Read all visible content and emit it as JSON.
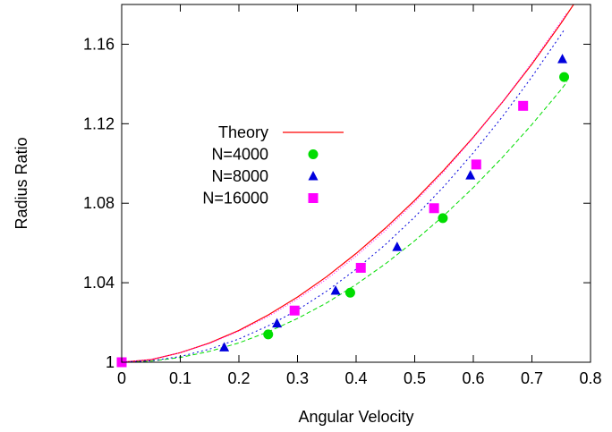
{
  "chart_data": {
    "type": "scatter",
    "title": "",
    "xlabel": "Angular Velocity",
    "ylabel": "Radius Ratio",
    "xlim": [
      0,
      0.8
    ],
    "ylim": [
      1,
      1.18
    ],
    "x_ticks": [
      "0",
      "0.1",
      "0.2",
      "0.3",
      "0.4",
      "0.5",
      "0.6",
      "0.7",
      "0.8"
    ],
    "y_ticks": [
      "1",
      "1.04",
      "1.08",
      "1.12",
      "1.16"
    ],
    "grid": false,
    "legend_position": "upper-left inside plot",
    "theory": {
      "name": "Theory",
      "color": "#ff0000",
      "style": "solid",
      "x": [
        0,
        0.05,
        0.1,
        0.15,
        0.2,
        0.25,
        0.3,
        0.35,
        0.4,
        0.45,
        0.5,
        0.55,
        0.6,
        0.65,
        0.7,
        0.75,
        0.8
      ],
      "y": [
        1.0,
        1.0013,
        1.0048,
        1.0097,
        1.016,
        1.0238,
        1.0328,
        1.0431,
        1.0547,
        1.0675,
        1.0815,
        1.0968,
        1.1132,
        1.131,
        1.15,
        1.1707,
        1.1928
      ]
    },
    "series": [
      {
        "name": "N=4000",
        "color": "#00dd00",
        "marker": "circle",
        "x": [
          0,
          0.25,
          0.39,
          0.548,
          0.755
        ],
        "y": [
          1.0,
          1.014,
          1.035,
          1.0725,
          1.1435
        ],
        "fit_x": [
          0,
          0.05,
          0.1,
          0.15,
          0.2,
          0.25,
          0.3,
          0.35,
          0.4,
          0.45,
          0.5,
          0.55,
          0.6,
          0.65,
          0.7,
          0.75,
          0.76
        ],
        "fit_y": [
          1.0,
          1.0006,
          1.0024,
          1.0055,
          1.0097,
          1.0153,
          1.022,
          1.0299,
          1.0391,
          1.0495,
          1.0611,
          1.0739,
          1.0879,
          1.1032,
          1.1196,
          1.1373,
          1.1411
        ]
      },
      {
        "name": "N=8000",
        "color": "#0000dd",
        "marker": "triangle",
        "x": [
          0,
          0.175,
          0.265,
          0.365,
          0.47,
          0.595,
          0.752
        ],
        "y": [
          1.0,
          1.0075,
          1.0195,
          1.036,
          1.058,
          1.094,
          1.1525
        ],
        "fit_x": [
          0,
          0.05,
          0.1,
          0.15,
          0.2,
          0.25,
          0.3,
          0.35,
          0.4,
          0.45,
          0.5,
          0.55,
          0.6,
          0.65,
          0.7,
          0.75,
          0.755
        ],
        "fit_y": [
          1.0,
          1.0007,
          1.0029,
          1.0066,
          1.0117,
          1.0183,
          1.0263,
          1.0358,
          1.0468,
          1.0592,
          1.0731,
          1.0885,
          1.1054,
          1.1237,
          1.1436,
          1.165,
          1.1672
        ]
      },
      {
        "name": "N=16000",
        "color": "#ff00ff",
        "marker": "square",
        "x": [
          0,
          0.295,
          0.408,
          0.533,
          0.605,
          0.685
        ],
        "y": [
          1.0,
          1.026,
          1.0475,
          1.0775,
          1.0995,
          1.129
        ],
        "fit_x": [
          0,
          0.05,
          0.1,
          0.15,
          0.2,
          0.25,
          0.3,
          0.35,
          0.4,
          0.45,
          0.5,
          0.55,
          0.6,
          0.65,
          0.7,
          0.75,
          0.76
        ],
        "fit_y": [
          1.0,
          1.0014,
          1.0048,
          1.0095,
          1.0156,
          1.023,
          1.0318,
          1.0419,
          1.0534,
          1.0663,
          1.0805,
          1.096,
          1.1129,
          1.1311,
          1.1507,
          1.1716,
          1.1759
        ]
      }
    ]
  }
}
